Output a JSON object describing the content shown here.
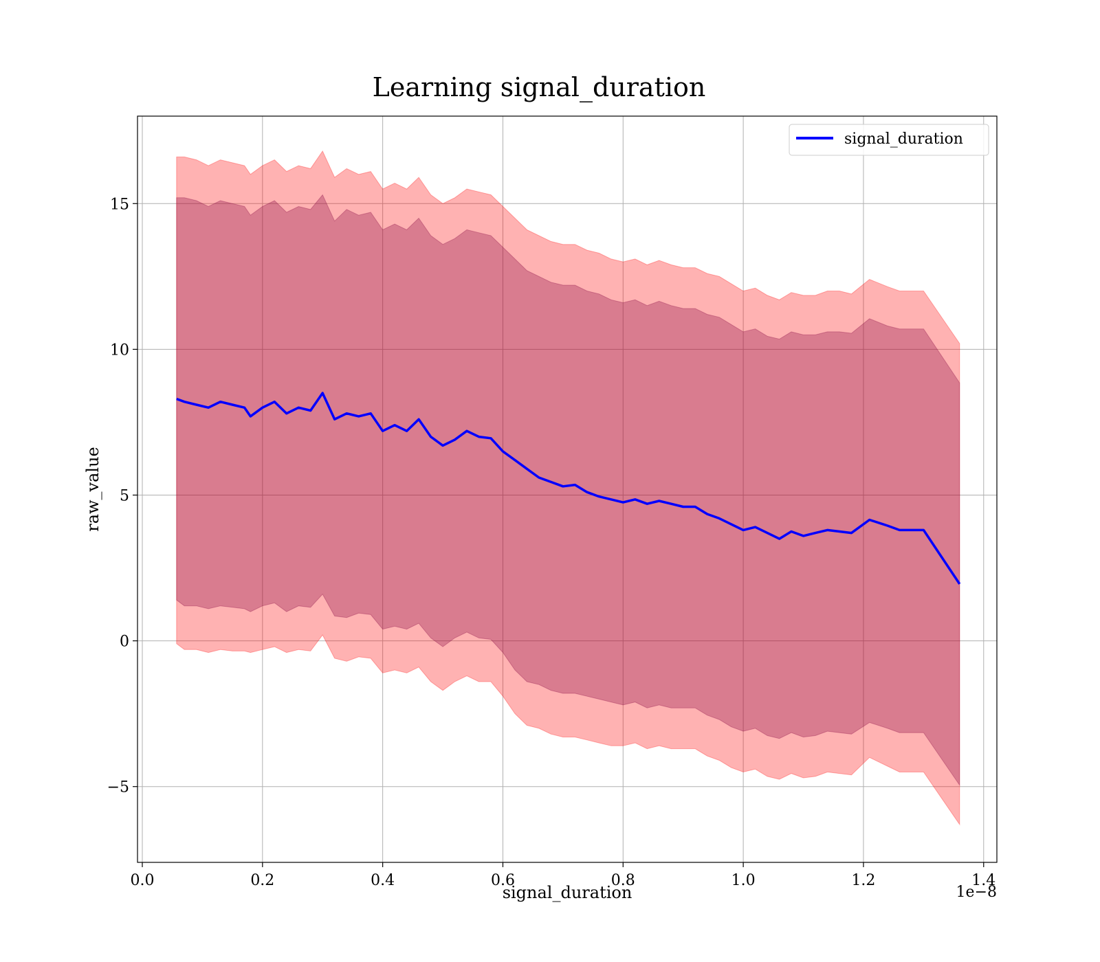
{
  "chart_data": {
    "type": "line",
    "title": "Learning signal_duration",
    "xlabel": "signal_duration",
    "ylabel": "raw_value",
    "x_offset_label": "1e−8",
    "xlim": [
      -0.008,
      1.422
    ],
    "ylim": [
      -7.6,
      18.0
    ],
    "x_ticks": [
      0.0,
      0.2,
      0.4,
      0.6,
      0.8,
      1.0,
      1.2,
      1.4
    ],
    "x_tick_labels": [
      "0.0",
      "0.2",
      "0.4",
      "0.6",
      "0.8",
      "1.0",
      "1.2",
      "1.4"
    ],
    "y_ticks": [
      -5,
      0,
      5,
      10,
      15
    ],
    "y_tick_labels": [
      "−5",
      "0",
      "5",
      "10",
      "15"
    ],
    "grid": true,
    "legend": {
      "position": "top-right",
      "entries": [
        "signal_duration"
      ]
    },
    "colors": {
      "line": "#0000ff",
      "outer_band": "#ff0000",
      "inner_band": "#800040",
      "grid": "#b0b0b0"
    },
    "band_alpha": 0.3,
    "x": [
      0.057,
      0.07,
      0.09,
      0.11,
      0.13,
      0.15,
      0.17,
      0.18,
      0.2,
      0.22,
      0.24,
      0.26,
      0.28,
      0.3,
      0.32,
      0.34,
      0.36,
      0.38,
      0.4,
      0.42,
      0.44,
      0.46,
      0.48,
      0.5,
      0.52,
      0.54,
      0.56,
      0.58,
      0.6,
      0.62,
      0.64,
      0.66,
      0.68,
      0.7,
      0.72,
      0.74,
      0.76,
      0.78,
      0.8,
      0.82,
      0.84,
      0.86,
      0.88,
      0.9,
      0.92,
      0.94,
      0.96,
      0.98,
      1.0,
      1.02,
      1.04,
      1.06,
      1.08,
      1.1,
      1.12,
      1.14,
      1.16,
      1.18,
      1.21,
      1.24,
      1.26,
      1.3,
      1.36
    ],
    "series": [
      {
        "name": "signal_duration",
        "values": [
          8.3,
          8.2,
          8.1,
          8.0,
          8.2,
          8.1,
          8.0,
          7.7,
          8.0,
          8.2,
          7.8,
          8.0,
          7.9,
          8.5,
          7.6,
          7.8,
          7.7,
          7.8,
          7.2,
          7.4,
          7.2,
          7.6,
          7.0,
          6.7,
          6.9,
          7.2,
          7.0,
          6.95,
          6.5,
          6.2,
          5.9,
          5.6,
          5.45,
          5.3,
          5.35,
          5.1,
          4.95,
          4.85,
          4.75,
          4.85,
          4.7,
          4.8,
          4.7,
          4.6,
          4.6,
          4.35,
          4.2,
          4.0,
          3.8,
          3.9,
          3.7,
          3.5,
          3.75,
          3.6,
          3.7,
          3.8,
          3.75,
          3.7,
          4.15,
          3.95,
          3.8,
          3.8,
          1.95
        ]
      }
    ],
    "bands": [
      {
        "lower": [
          -0.1,
          -0.3,
          -0.3,
          -0.4,
          -0.3,
          -0.35,
          -0.35,
          -0.4,
          -0.3,
          -0.2,
          -0.4,
          -0.3,
          -0.35,
          0.2,
          -0.6,
          -0.7,
          -0.55,
          -0.6,
          -1.1,
          -1.0,
          -1.1,
          -0.9,
          -1.4,
          -1.7,
          -1.4,
          -1.2,
          -1.4,
          -1.4,
          -1.9,
          -2.5,
          -2.9,
          -3.0,
          -3.2,
          -3.3,
          -3.3,
          -3.4,
          -3.5,
          -3.6,
          -3.6,
          -3.5,
          -3.7,
          -3.6,
          -3.7,
          -3.7,
          -3.7,
          -3.95,
          -4.1,
          -4.35,
          -4.5,
          -4.4,
          -4.65,
          -4.75,
          -4.55,
          -4.7,
          -4.65,
          -4.5,
          -4.55,
          -4.6,
          -4.0,
          -4.3,
          -4.5,
          -4.5,
          -6.3
        ],
        "upper": [
          16.6,
          16.6,
          16.5,
          16.3,
          16.5,
          16.4,
          16.3,
          16.0,
          16.3,
          16.5,
          16.1,
          16.3,
          16.2,
          16.8,
          15.9,
          16.2,
          16.0,
          16.1,
          15.5,
          15.7,
          15.5,
          15.9,
          15.3,
          15.0,
          15.2,
          15.5,
          15.4,
          15.3,
          14.9,
          14.5,
          14.1,
          13.9,
          13.7,
          13.6,
          13.6,
          13.4,
          13.3,
          13.1,
          13.0,
          13.1,
          12.9,
          13.05,
          12.9,
          12.8,
          12.8,
          12.6,
          12.5,
          12.25,
          12.0,
          12.1,
          11.85,
          11.7,
          11.95,
          11.85,
          11.85,
          12.0,
          12.0,
          11.9,
          12.4,
          12.15,
          12.0,
          12.0,
          10.2
        ]
      },
      {
        "lower": [
          1.4,
          1.2,
          1.2,
          1.1,
          1.2,
          1.15,
          1.1,
          1.0,
          1.2,
          1.3,
          1.0,
          1.2,
          1.15,
          1.6,
          0.85,
          0.8,
          0.95,
          0.9,
          0.4,
          0.5,
          0.4,
          0.6,
          0.1,
          -0.2,
          0.1,
          0.3,
          0.1,
          0.05,
          -0.4,
          -1.0,
          -1.4,
          -1.5,
          -1.7,
          -1.8,
          -1.8,
          -1.9,
          -2.0,
          -2.1,
          -2.2,
          -2.1,
          -2.3,
          -2.2,
          -2.3,
          -2.3,
          -2.3,
          -2.55,
          -2.7,
          -2.95,
          -3.1,
          -3.0,
          -3.25,
          -3.35,
          -3.15,
          -3.3,
          -3.25,
          -3.1,
          -3.15,
          -3.2,
          -2.8,
          -3.0,
          -3.15,
          -3.15,
          -4.95
        ],
        "upper": [
          15.2,
          15.2,
          15.1,
          14.9,
          15.1,
          15.0,
          14.9,
          14.6,
          14.9,
          15.1,
          14.7,
          14.9,
          14.8,
          15.3,
          14.4,
          14.8,
          14.6,
          14.7,
          14.1,
          14.3,
          14.1,
          14.5,
          13.9,
          13.6,
          13.8,
          14.1,
          14.0,
          13.9,
          13.5,
          13.1,
          12.7,
          12.5,
          12.3,
          12.2,
          12.2,
          12.0,
          11.9,
          11.7,
          11.6,
          11.7,
          11.5,
          11.65,
          11.5,
          11.4,
          11.4,
          11.2,
          11.1,
          10.85,
          10.6,
          10.7,
          10.45,
          10.35,
          10.6,
          10.5,
          10.5,
          10.6,
          10.6,
          10.55,
          11.05,
          10.8,
          10.7,
          10.7,
          8.85
        ]
      }
    ]
  }
}
